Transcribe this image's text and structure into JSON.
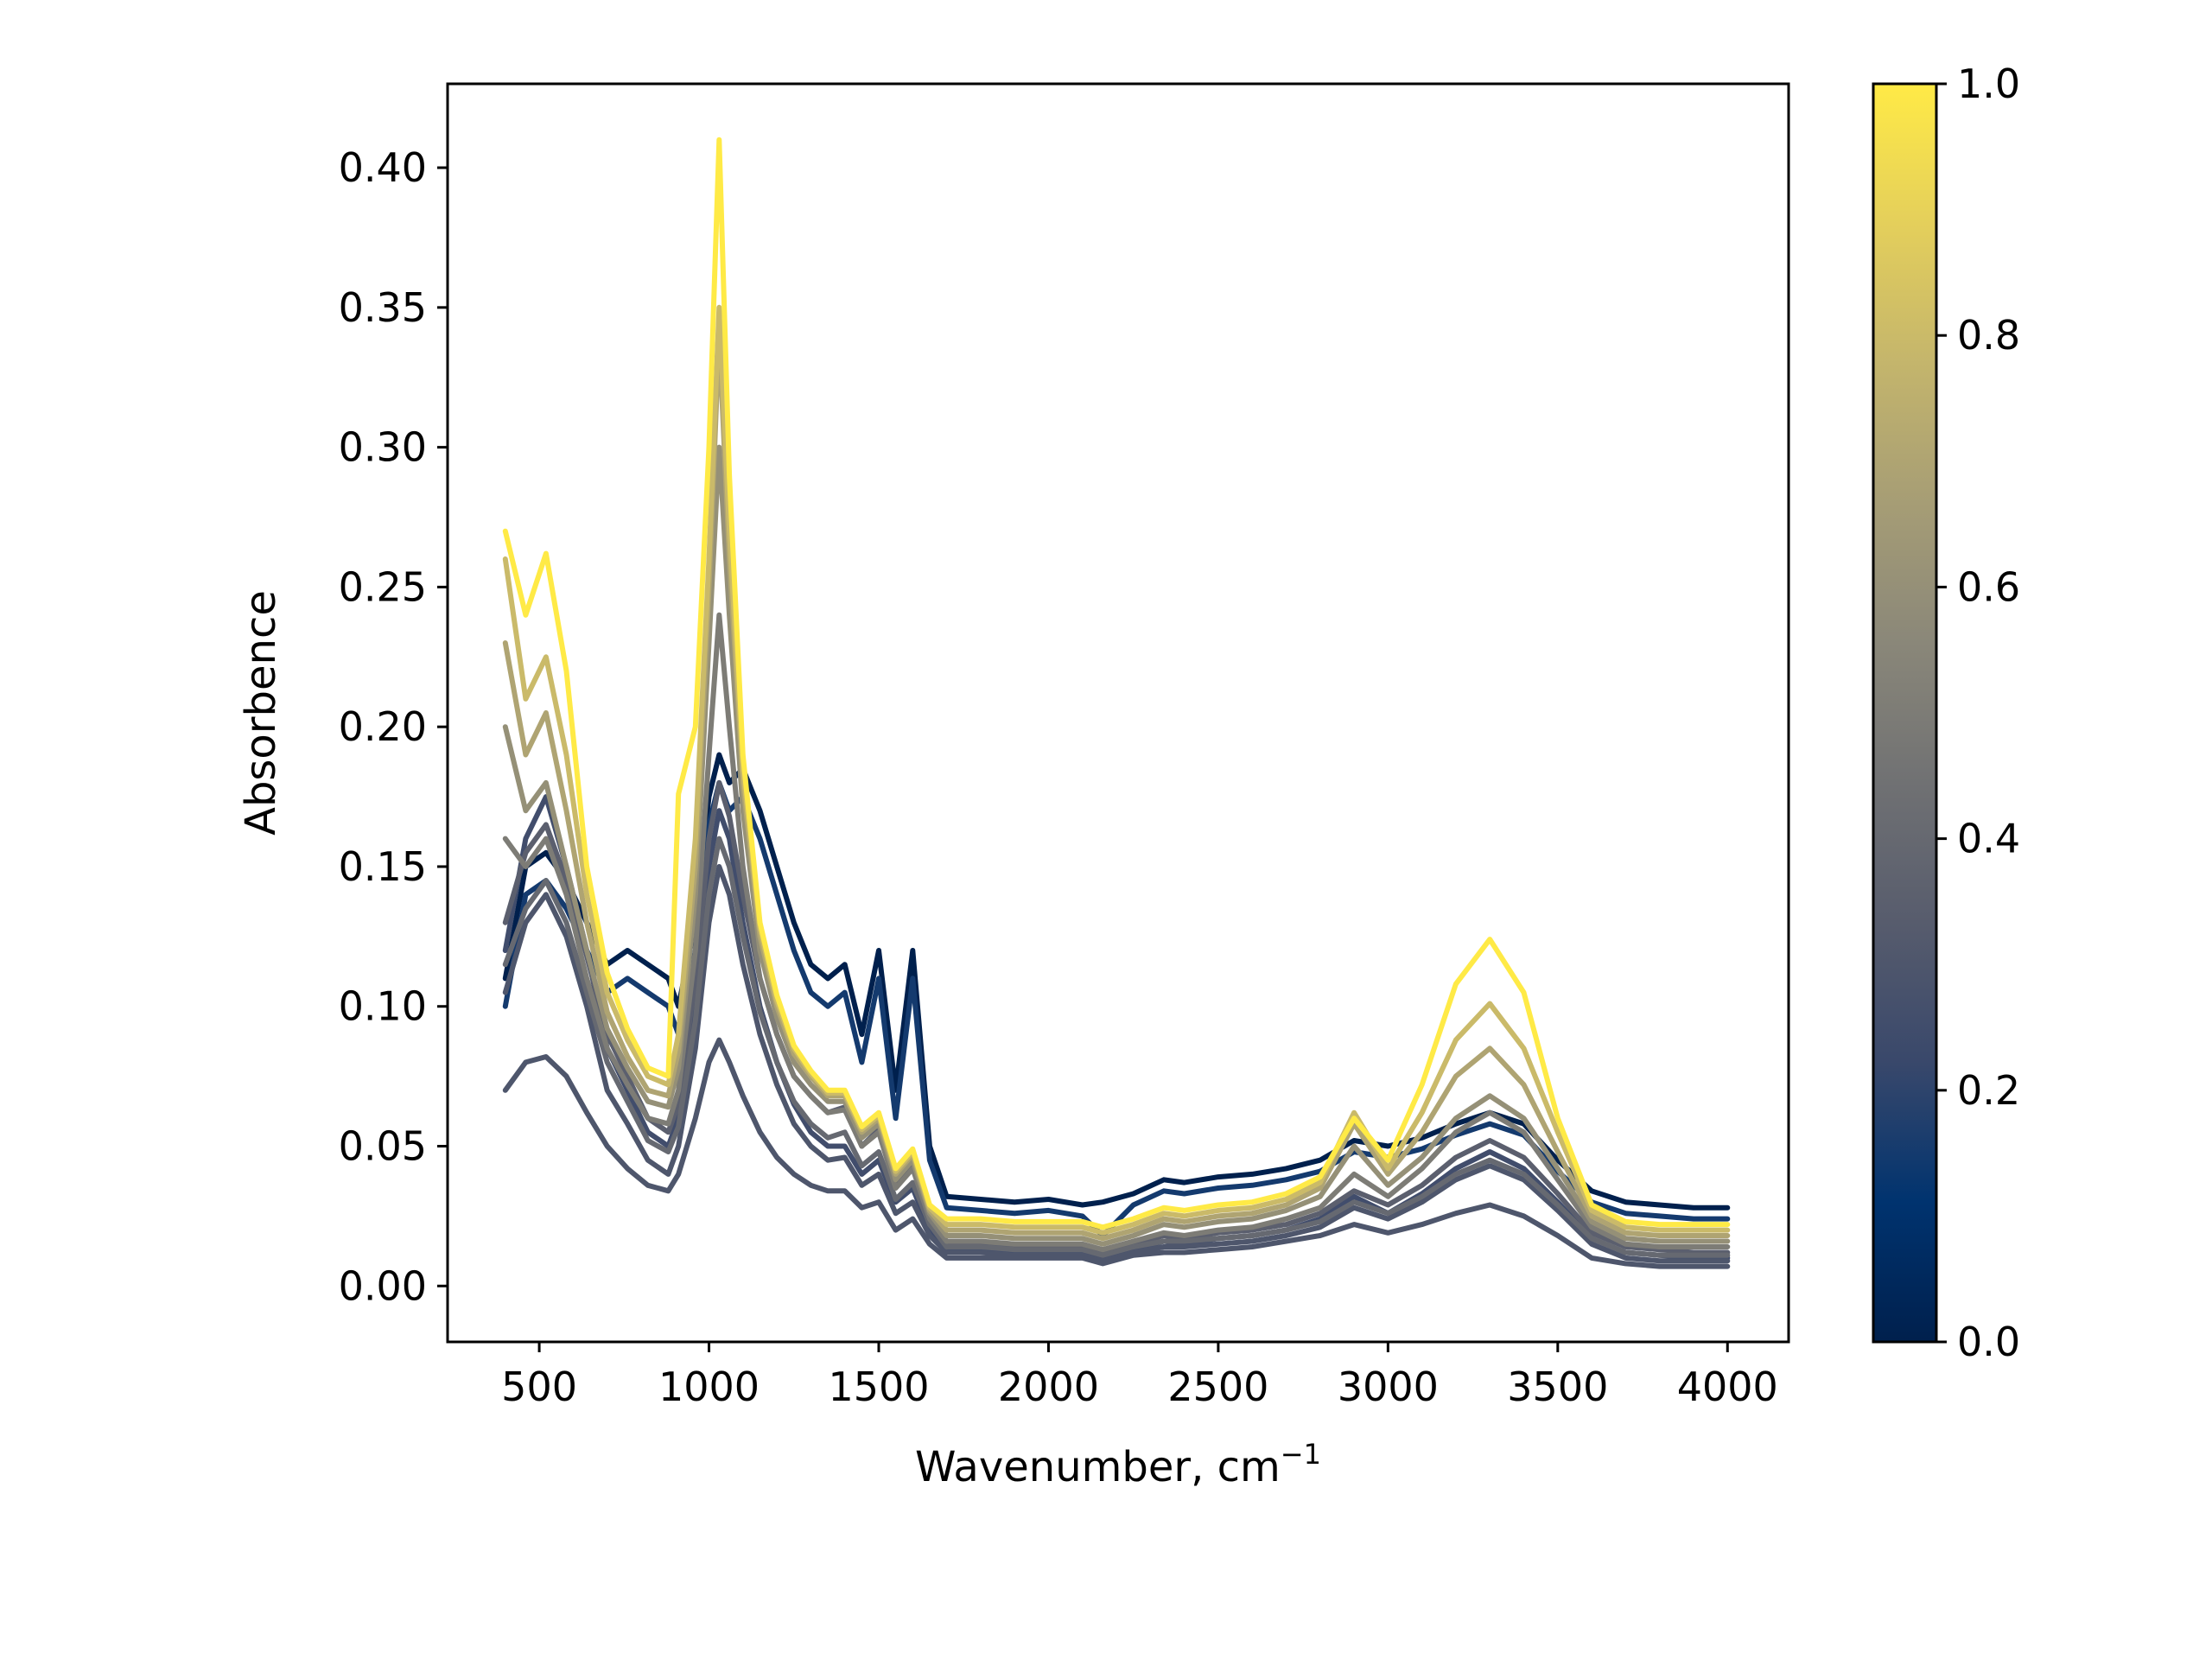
{
  "chart_data": {
    "type": "line",
    "title": "",
    "xlabel": "Wavenumber, cm",
    "xlabel_superscript": "−1",
    "ylabel": "Absorbence",
    "xlim": [
      230,
      4180
    ],
    "ylim": [
      -0.02,
      0.43
    ],
    "xticks": [
      500,
      1000,
      1500,
      2000,
      2500,
      3000,
      3500,
      4000
    ],
    "yticks": [
      0.0,
      0.05,
      0.1,
      0.15,
      0.2,
      0.25,
      0.3,
      0.35,
      0.4
    ],
    "yticklabels": [
      "0.00",
      "0.05",
      "0.10",
      "0.15",
      "0.20",
      "0.25",
      "0.30",
      "0.35",
      "0.40"
    ],
    "grid": false,
    "legend": "none",
    "colormap": "cividis",
    "colormap_stops": [
      "#00204d",
      "#00336f",
      "#39486b",
      "#575c6d",
      "#707173",
      "#8a8779",
      "#a69d75",
      "#c4b56c",
      "#e4cf5b",
      "#ffea46"
    ],
    "colorbar": {
      "min": 0.0,
      "max": 1.0,
      "ticks": [
        0.0,
        0.2,
        0.4,
        0.6,
        0.8,
        1.0
      ],
      "ticklabels": [
        "0.0",
        "0.2",
        "0.4",
        "0.6",
        "0.8",
        "1.0"
      ]
    },
    "series_x": [
      400,
      460,
      520,
      580,
      640,
      700,
      760,
      820,
      880,
      910,
      960,
      1000,
      1030,
      1060,
      1100,
      1150,
      1200,
      1250,
      1300,
      1350,
      1400,
      1450,
      1500,
      1550,
      1600,
      1650,
      1700,
      1800,
      1900,
      2000,
      2100,
      2160,
      2250,
      2340,
      2400,
      2500,
      2600,
      2700,
      2800,
      2900,
      3000,
      3100,
      3200,
      3300,
      3400,
      3500,
      3600,
      3700,
      3800,
      3900,
      4000
    ],
    "series": [
      {
        "color_value": 0.0,
        "values": [
          0.11,
          0.15,
          0.155,
          0.145,
          0.13,
          0.115,
          0.12,
          0.115,
          0.11,
          0.1,
          0.13,
          0.175,
          0.19,
          0.18,
          0.185,
          0.17,
          0.15,
          0.13,
          0.115,
          0.11,
          0.115,
          0.09,
          0.12,
          0.07,
          0.12,
          0.05,
          0.032,
          0.031,
          0.03,
          0.031,
          0.029,
          0.03,
          0.033,
          0.038,
          0.037,
          0.039,
          0.04,
          0.042,
          0.045,
          0.052,
          0.05,
          0.053,
          0.058,
          0.062,
          0.058,
          0.045,
          0.034,
          0.03,
          0.029,
          0.028,
          0.028
        ]
      },
      {
        "color_value": 0.15,
        "values": [
          0.1,
          0.14,
          0.145,
          0.135,
          0.12,
          0.105,
          0.11,
          0.105,
          0.1,
          0.09,
          0.12,
          0.165,
          0.18,
          0.17,
          0.175,
          0.16,
          0.14,
          0.12,
          0.105,
          0.1,
          0.105,
          0.08,
          0.11,
          0.06,
          0.11,
          0.045,
          0.028,
          0.027,
          0.026,
          0.027,
          0.025,
          0.018,
          0.029,
          0.034,
          0.033,
          0.035,
          0.036,
          0.038,
          0.041,
          0.048,
          0.046,
          0.049,
          0.054,
          0.058,
          0.054,
          0.041,
          0.03,
          0.026,
          0.025,
          0.024,
          0.024
        ]
      },
      {
        "color_value": 0.25,
        "values": [
          0.12,
          0.16,
          0.175,
          0.15,
          0.12,
          0.085,
          0.07,
          0.055,
          0.05,
          0.06,
          0.1,
          0.15,
          0.17,
          0.16,
          0.13,
          0.1,
          0.08,
          0.065,
          0.055,
          0.05,
          0.05,
          0.04,
          0.045,
          0.03,
          0.035,
          0.02,
          0.013,
          0.013,
          0.012,
          0.012,
          0.012,
          0.01,
          0.013,
          0.016,
          0.015,
          0.017,
          0.018,
          0.02,
          0.024,
          0.032,
          0.026,
          0.033,
          0.042,
          0.048,
          0.042,
          0.03,
          0.017,
          0.012,
          0.011,
          0.01,
          0.01
        ]
      },
      {
        "color_value": 0.3,
        "values": [
          0.105,
          0.13,
          0.14,
          0.125,
          0.1,
          0.07,
          0.058,
          0.045,
          0.04,
          0.05,
          0.085,
          0.13,
          0.15,
          0.14,
          0.115,
          0.09,
          0.072,
          0.058,
          0.05,
          0.045,
          0.046,
          0.036,
          0.04,
          0.026,
          0.03,
          0.018,
          0.012,
          0.012,
          0.011,
          0.011,
          0.011,
          0.009,
          0.012,
          0.014,
          0.014,
          0.015,
          0.016,
          0.018,
          0.021,
          0.028,
          0.024,
          0.03,
          0.038,
          0.043,
          0.038,
          0.027,
          0.015,
          0.01,
          0.009,
          0.009,
          0.009
        ]
      },
      {
        "color_value": 0.3,
        "values": [
          0.07,
          0.08,
          0.082,
          0.075,
          0.062,
          0.05,
          0.042,
          0.036,
          0.034,
          0.04,
          0.06,
          0.08,
          0.088,
          0.08,
          0.068,
          0.055,
          0.046,
          0.04,
          0.036,
          0.034,
          0.034,
          0.028,
          0.03,
          0.02,
          0.024,
          0.015,
          0.01,
          0.01,
          0.01,
          0.01,
          0.01,
          0.008,
          0.011,
          0.012,
          0.012,
          0.013,
          0.014,
          0.016,
          0.018,
          0.022,
          0.019,
          0.022,
          0.026,
          0.029,
          0.025,
          0.018,
          0.01,
          0.008,
          0.007,
          0.007,
          0.007
        ]
      },
      {
        "color_value": 0.35,
        "values": [
          0.13,
          0.155,
          0.165,
          0.145,
          0.118,
          0.09,
          0.075,
          0.06,
          0.055,
          0.065,
          0.11,
          0.16,
          0.18,
          0.168,
          0.14,
          0.11,
          0.09,
          0.075,
          0.068,
          0.062,
          0.064,
          0.05,
          0.056,
          0.036,
          0.044,
          0.025,
          0.015,
          0.015,
          0.014,
          0.014,
          0.014,
          0.012,
          0.015,
          0.018,
          0.017,
          0.019,
          0.02,
          0.022,
          0.026,
          0.034,
          0.029,
          0.036,
          0.046,
          0.052,
          0.046,
          0.033,
          0.019,
          0.014,
          0.013,
          0.012,
          0.012
        ]
      },
      {
        "color_value": 0.4,
        "values": [
          0.115,
          0.135,
          0.145,
          0.13,
          0.105,
          0.08,
          0.066,
          0.052,
          0.048,
          0.057,
          0.095,
          0.14,
          0.16,
          0.15,
          0.125,
          0.098,
          0.08,
          0.066,
          0.058,
          0.053,
          0.055,
          0.043,
          0.048,
          0.031,
          0.037,
          0.022,
          0.014,
          0.014,
          0.013,
          0.013,
          0.013,
          0.011,
          0.014,
          0.016,
          0.016,
          0.017,
          0.018,
          0.02,
          0.023,
          0.03,
          0.026,
          0.032,
          0.04,
          0.045,
          0.04,
          0.029,
          0.017,
          0.012,
          0.011,
          0.011,
          0.011
        ]
      },
      {
        "color_value": 0.5,
        "values": [
          0.16,
          0.15,
          0.16,
          0.14,
          0.11,
          0.085,
          0.072,
          0.06,
          0.058,
          0.07,
          0.12,
          0.19,
          0.24,
          0.2,
          0.15,
          0.11,
          0.09,
          0.075,
          0.068,
          0.062,
          0.063,
          0.05,
          0.055,
          0.035,
          0.042,
          0.024,
          0.016,
          0.016,
          0.015,
          0.015,
          0.015,
          0.013,
          0.016,
          0.019,
          0.018,
          0.02,
          0.021,
          0.024,
          0.028,
          0.04,
          0.032,
          0.042,
          0.055,
          0.062,
          0.055,
          0.038,
          0.021,
          0.015,
          0.014,
          0.014,
          0.014
        ]
      },
      {
        "color_value": 0.6,
        "values": [
          0.2,
          0.17,
          0.18,
          0.15,
          0.12,
          0.092,
          0.078,
          0.066,
          0.064,
          0.078,
          0.14,
          0.23,
          0.3,
          0.24,
          0.17,
          0.12,
          0.096,
          0.08,
          0.072,
          0.066,
          0.066,
          0.053,
          0.058,
          0.038,
          0.045,
          0.026,
          0.018,
          0.018,
          0.017,
          0.017,
          0.017,
          0.015,
          0.018,
          0.022,
          0.021,
          0.023,
          0.024,
          0.027,
          0.032,
          0.05,
          0.036,
          0.046,
          0.06,
          0.068,
          0.06,
          0.042,
          0.023,
          0.017,
          0.016,
          0.016,
          0.016
        ]
      },
      {
        "color_value": 0.7,
        "values": [
          0.23,
          0.19,
          0.205,
          0.17,
          0.13,
          0.098,
          0.082,
          0.07,
          0.068,
          0.084,
          0.15,
          0.25,
          0.34,
          0.26,
          0.18,
          0.125,
          0.1,
          0.083,
          0.075,
          0.068,
          0.068,
          0.055,
          0.06,
          0.04,
          0.047,
          0.027,
          0.02,
          0.02,
          0.019,
          0.019,
          0.019,
          0.017,
          0.02,
          0.024,
          0.023,
          0.025,
          0.026,
          0.029,
          0.035,
          0.058,
          0.04,
          0.055,
          0.075,
          0.085,
          0.072,
          0.048,
          0.025,
          0.019,
          0.018,
          0.018,
          0.018
        ]
      },
      {
        "color_value": 0.8,
        "values": [
          0.26,
          0.21,
          0.225,
          0.19,
          0.14,
          0.105,
          0.088,
          0.075,
          0.072,
          0.09,
          0.16,
          0.26,
          0.35,
          0.27,
          0.185,
          0.128,
          0.102,
          0.085,
          0.076,
          0.069,
          0.069,
          0.056,
          0.061,
          0.041,
          0.048,
          0.028,
          0.022,
          0.022,
          0.021,
          0.021,
          0.021,
          0.019,
          0.022,
          0.026,
          0.025,
          0.027,
          0.028,
          0.031,
          0.037,
          0.062,
          0.042,
          0.062,
          0.088,
          0.101,
          0.085,
          0.055,
          0.027,
          0.021,
          0.02,
          0.02,
          0.02
        ]
      },
      {
        "color_value": 1.0,
        "values": [
          0.27,
          0.24,
          0.262,
          0.22,
          0.15,
          0.112,
          0.092,
          0.078,
          0.075,
          0.176,
          0.2,
          0.3,
          0.41,
          0.29,
          0.19,
          0.13,
          0.104,
          0.086,
          0.077,
          0.07,
          0.07,
          0.057,
          0.062,
          0.042,
          0.049,
          0.029,
          0.024,
          0.024,
          0.023,
          0.023,
          0.023,
          0.021,
          0.024,
          0.028,
          0.027,
          0.029,
          0.03,
          0.033,
          0.039,
          0.06,
          0.045,
          0.072,
          0.108,
          0.124,
          0.105,
          0.06,
          0.029,
          0.023,
          0.022,
          0.022,
          0.022
        ]
      }
    ]
  }
}
